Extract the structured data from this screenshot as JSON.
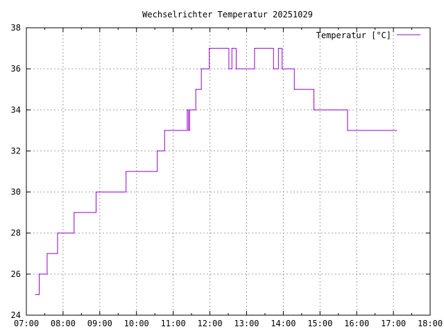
{
  "chart_data": {
    "type": "line",
    "title": "Wechselrichter Temperatur 20251029",
    "xlabel": "",
    "ylabel": "",
    "xlim": [
      "07:00",
      "18:00"
    ],
    "ylim": [
      24,
      38
    ],
    "x_ticks": [
      "07:00",
      "08:00",
      "09:00",
      "10:00",
      "11:00",
      "12:00",
      "13:00",
      "14:00",
      "15:00",
      "16:00",
      "17:00",
      "18:00"
    ],
    "y_ticks": [
      "24",
      "26",
      "28",
      "30",
      "32",
      "34",
      "36",
      "38"
    ],
    "grid": true,
    "legend_position": "top-right",
    "series": [
      {
        "name": "Temperatur [°C]",
        "color": "#9400d3",
        "step": true,
        "points": [
          [
            "07:15",
            25
          ],
          [
            "07:21",
            26
          ],
          [
            "07:34",
            27
          ],
          [
            "07:51",
            28
          ],
          [
            "08:18",
            29
          ],
          [
            "08:54",
            30
          ],
          [
            "09:43",
            31
          ],
          [
            "10:34",
            32
          ],
          [
            "10:46",
            33
          ],
          [
            "11:23",
            34
          ],
          [
            "11:25",
            33
          ],
          [
            "11:27",
            34
          ],
          [
            "11:37",
            35
          ],
          [
            "11:46",
            36
          ],
          [
            "11:59",
            37
          ],
          [
            "12:31",
            36
          ],
          [
            "12:36",
            37
          ],
          [
            "12:43",
            36
          ],
          [
            "13:13",
            37
          ],
          [
            "13:44",
            36
          ],
          [
            "13:52",
            37
          ],
          [
            "13:58",
            36
          ],
          [
            "14:18",
            35
          ],
          [
            "14:50",
            34
          ],
          [
            "15:45",
            33
          ],
          [
            "17:05",
            33
          ]
        ]
      }
    ]
  }
}
